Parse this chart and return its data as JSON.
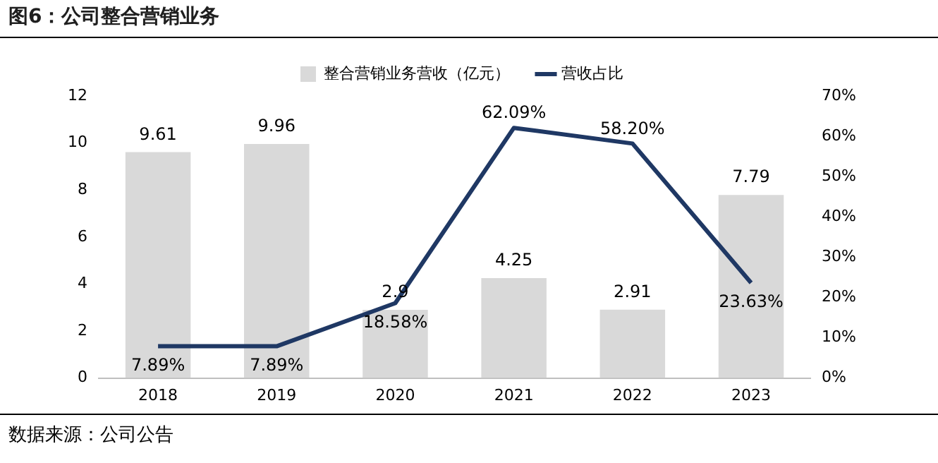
{
  "chart_data": {
    "type": "bar",
    "title": "图6：公司整合营销业务",
    "categories": [
      "2018",
      "2019",
      "2020",
      "2021",
      "2022",
      "2023"
    ],
    "series": [
      {
        "name": "整合营销业务营收（亿元）",
        "color": "#d9d9d9",
        "values": [
          9.61,
          9.96,
          2.9,
          4.25,
          2.91,
          7.79
        ],
        "value_labels": [
          "9.61",
          "9.96",
          "2.9",
          "4.25",
          "2.91",
          "7.79"
        ]
      },
      {
        "name": "营收占比",
        "type": "line",
        "axis": "y2",
        "color": "#1f3864",
        "values": [
          7.89,
          7.89,
          18.58,
          62.09,
          58.2,
          23.63
        ],
        "value_labels": [
          "7.89%",
          "7.89%",
          "18.58%",
          "62.09%",
          "58.20%",
          "23.63%"
        ]
      }
    ],
    "ylim": [
      0,
      12
    ],
    "yticks": [
      0,
      2,
      4,
      6,
      8,
      10,
      12
    ],
    "y2lim": [
      0,
      70
    ],
    "y2ticks": [
      {
        "value": 0,
        "label": "0%"
      },
      {
        "value": 10,
        "label": "10%"
      },
      {
        "value": 20,
        "label": "20%"
      },
      {
        "value": 30,
        "label": "30%"
      },
      {
        "value": 40,
        "label": "40%"
      },
      {
        "value": 50,
        "label": "50%"
      },
      {
        "value": 60,
        "label": "60%"
      },
      {
        "value": 70,
        "label": "70%"
      }
    ],
    "legend": "top",
    "grid": false,
    "marker": "none",
    "annotations": [
      "数据来源：公司公告"
    ]
  }
}
